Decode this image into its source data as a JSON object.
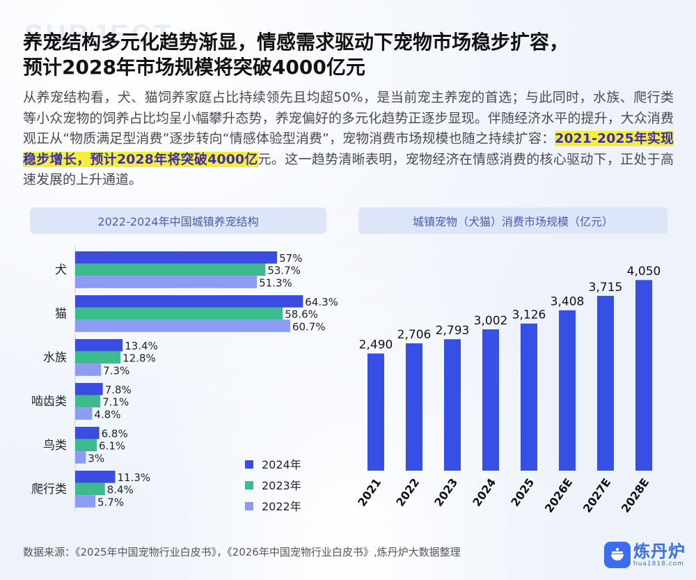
{
  "watermark": "SUBJECT",
  "title_line1": "养宠结构多元化趋势渐显，情感需求驱动下宠物市场稳步扩容，",
  "title_line2": "预计2028年市场规模将突破4000亿元",
  "para_before": "从养宠结构看，犬、猫饲养家庭占比持续领先且均超50%，是当前宠主养宠的首选；与此同时，水族、爬行类等小众宠物的饲养占比均呈小幅攀升态势，养宠偏好的多元化趋势正逐步显现。伴随经济水平的提升，大众消费观正从“物质满足型消费”逐步转向“情感体验型消费”，宠物消费市场规模也随之持续扩容：",
  "para_highlight": "2021-2025年实现稳步增长，预计2028年将突破4000亿",
  "para_after": "元。这一趋势清晰表明，宠物经济在情感消费的核心驱动下，正处于高速发展的上升通道。",
  "source": "数据来源：《2025年中国宠物行业白皮书》，《2026年中国宠物行业白皮书》,炼丹炉大数据整理",
  "logo_text": "炼丹炉",
  "logo_sub": "hua1818.com",
  "chart_data": [
    {
      "type": "bar",
      "orientation": "horizontal",
      "title": "2022-2024年中国城镇养宠结构",
      "categories": [
        "犬",
        "猫",
        "水族",
        "啮齿类",
        "鸟类",
        "爬行类"
      ],
      "series": [
        {
          "name": "2024年",
          "color": "#3b4de0",
          "values": [
            57,
            64.3,
            13.4,
            7.8,
            6.8,
            11.3
          ],
          "labels": [
            "57%",
            "64.3%",
            "13.4%",
            "7.8%",
            "6.8%",
            "11.3%"
          ]
        },
        {
          "name": "2023年",
          "color": "#3dba8e",
          "values": [
            53.7,
            58.6,
            12.8,
            7.1,
            6.1,
            8.4
          ],
          "labels": [
            "53.7%",
            "58.6%",
            "12.8%",
            "7.1%",
            "6.1%",
            "8.4%"
          ]
        },
        {
          "name": "2022年",
          "color": "#8c9cf2",
          "values": [
            51.3,
            60.7,
            7.3,
            4.8,
            3,
            5.7
          ],
          "labels": [
            "51.3%",
            "60.7%",
            "7.3%",
            "4.8%",
            "3%",
            "5.7%"
          ]
        }
      ],
      "xlim": [
        0,
        80
      ],
      "legend_position": "bottom-right"
    },
    {
      "type": "bar",
      "title": "城镇宠物（犬猫）消费市场规模（亿元）",
      "categories": [
        "2021",
        "2022",
        "2023",
        "2024",
        "2025",
        "2026E",
        "2027E",
        "2028E"
      ],
      "values": [
        2490,
        2706,
        2793,
        3002,
        3126,
        3408,
        3715,
        4050
      ],
      "labels": [
        "2,490",
        "2,706",
        "2,793",
        "3,002",
        "3,126",
        "3,408",
        "3,715",
        "4,050"
      ],
      "color": "#3650e6",
      "ylim": [
        0,
        4600
      ]
    }
  ]
}
